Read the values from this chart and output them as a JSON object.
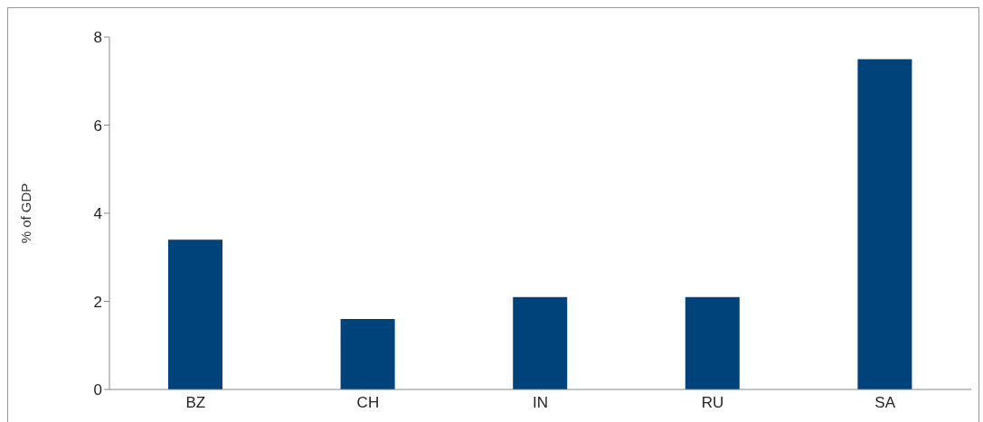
{
  "chart_data": {
    "type": "bar",
    "ylabel": "% of GDP",
    "categories": [
      "BZ",
      "CH",
      "IN",
      "RU",
      "SA"
    ],
    "values": [
      3.4,
      1.6,
      2.1,
      2.1,
      7.5
    ],
    "color": "#00427a",
    "ylim": [
      0,
      8
    ],
    "yticks": [
      0,
      2,
      4,
      6,
      8
    ],
    "grid": false,
    "legend": false
  }
}
